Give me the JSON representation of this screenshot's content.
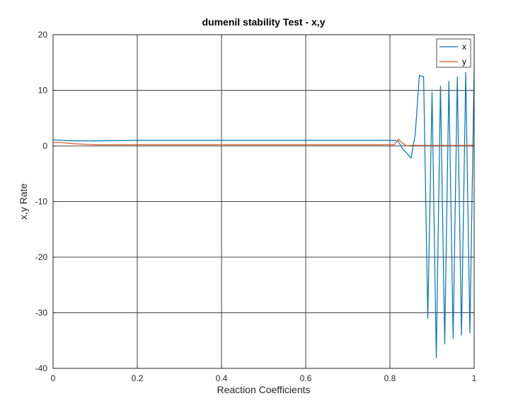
{
  "chart_data": {
    "type": "line",
    "title": "dumenil stability Test - x,y",
    "xlabel": "Reaction Coefficients",
    "ylabel": "x,y Rate",
    "xlim": [
      0,
      1
    ],
    "ylim": [
      -40,
      20
    ],
    "xticks": [
      0,
      0.2,
      0.4,
      0.6,
      0.8,
      1
    ],
    "xtick_labels": [
      "0",
      "0.2",
      "0.4",
      "0.6",
      "0.8",
      "1"
    ],
    "yticks": [
      -40,
      -30,
      -20,
      -10,
      0,
      10,
      20
    ],
    "ytick_labels": [
      "-40",
      "-30",
      "-20",
      "-10",
      "0",
      "10",
      "20"
    ],
    "grid": true,
    "legend_position": "top-right",
    "series": [
      {
        "name": "x",
        "color": "#0072BD",
        "x": [
          0,
          0.02,
          0.05,
          0.1,
          0.2,
          0.3,
          0.4,
          0.5,
          0.6,
          0.7,
          0.8,
          0.81,
          0.82,
          0.83,
          0.84,
          0.85,
          0.86,
          0.87,
          0.88,
          0.89,
          0.9,
          0.91,
          0.92,
          0.93,
          0.94,
          0.95,
          0.96,
          0.97,
          0.98,
          0.99,
          1.0
        ],
        "y": [
          1.1,
          1.0,
          0.9,
          0.9,
          1.0,
          1.0,
          1.0,
          1.0,
          1.0,
          1.0,
          1.0,
          1.0,
          0.8,
          -0.5,
          -1.3,
          -2.2,
          2.0,
          12.7,
          12.4,
          -31.0,
          9.7,
          -38.1,
          10.8,
          -35.6,
          11.6,
          -34.6,
          12.4,
          -34.0,
          13.2,
          -33.6,
          14.0
        ]
      },
      {
        "name": "y",
        "color": "#D95319",
        "x": [
          0,
          0.02,
          0.05,
          0.1,
          0.2,
          0.3,
          0.4,
          0.5,
          0.6,
          0.7,
          0.8,
          0.81,
          0.82,
          0.83,
          0.84,
          0.85,
          0.86,
          0.9,
          0.95,
          1.0
        ],
        "y": [
          0.6,
          0.6,
          0.4,
          0.2,
          0.2,
          0.2,
          0.2,
          0.2,
          0.2,
          0.2,
          0.2,
          0.2,
          1.2,
          0.5,
          0.0,
          0.1,
          0.1,
          0.1,
          0.1,
          0.1
        ]
      }
    ]
  }
}
